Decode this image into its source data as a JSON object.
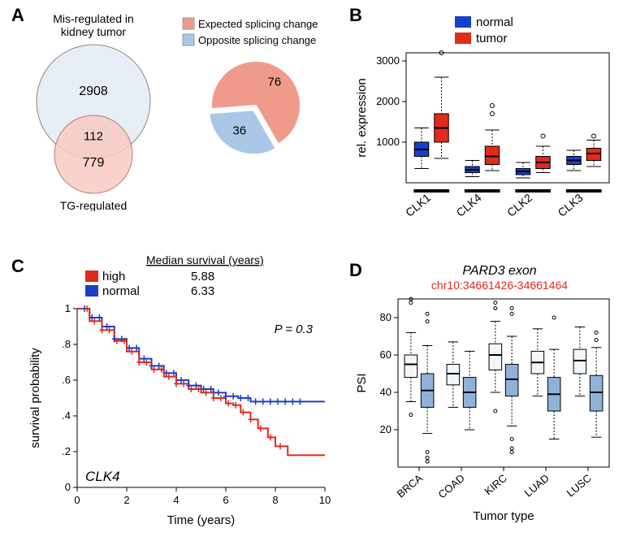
{
  "panelA": {
    "label": "A",
    "venn": {
      "topTitle": "Mis-regulated in\nkidney tumor",
      "bottomTitle": "TG-regulated",
      "topValue": 2908,
      "overlapValue": 112,
      "bottomValue": 779,
      "topColor": "#e8eef5",
      "bottomColor": "#f7cac2",
      "stroke": "#999"
    },
    "pie": {
      "legendExpected": "Expected splicing change",
      "legendOpposite": "Opposite splicing change",
      "expectedValue": 76,
      "oppositeValue": 36,
      "expectedColor": "#f09a8c",
      "oppositeColor": "#a9c8e8"
    }
  },
  "panelB": {
    "label": "B",
    "legend": {
      "normal": "normal",
      "tumor": "tumor",
      "normalColor": "#1a3ec7",
      "tumorColor": "#e02a1a"
    },
    "ylabel": "rel. expression",
    "ylim": [
      0,
      3200
    ],
    "yticks": [
      1000,
      2000,
      3000
    ],
    "categories": [
      "CLK1",
      "CLK4",
      "CLK2",
      "CLK3"
    ],
    "boxes": [
      {
        "cat": "CLK1",
        "group": "normal",
        "q1": 650,
        "med": 820,
        "q3": 1000,
        "lw": 350,
        "uw": 1350,
        "outliers": []
      },
      {
        "cat": "CLK1",
        "group": "tumor",
        "q1": 1000,
        "med": 1350,
        "q3": 1700,
        "lw": 600,
        "uw": 2600,
        "outliers": [
          3200
        ]
      },
      {
        "cat": "CLK4",
        "group": "normal",
        "q1": 250,
        "med": 320,
        "q3": 400,
        "lw": 150,
        "uw": 550,
        "outliers": []
      },
      {
        "cat": "CLK4",
        "group": "tumor",
        "q1": 450,
        "med": 650,
        "q3": 900,
        "lw": 300,
        "uw": 1300,
        "outliers": [
          1700,
          1900
        ]
      },
      {
        "cat": "CLK2",
        "group": "normal",
        "q1": 200,
        "med": 280,
        "q3": 350,
        "lw": 120,
        "uw": 500,
        "outliers": []
      },
      {
        "cat": "CLK2",
        "group": "tumor",
        "q1": 350,
        "med": 500,
        "q3": 650,
        "lw": 250,
        "uw": 900,
        "outliers": [
          1150
        ]
      },
      {
        "cat": "CLK3",
        "group": "normal",
        "q1": 450,
        "med": 550,
        "q3": 650,
        "lw": 300,
        "uw": 800,
        "outliers": []
      },
      {
        "cat": "CLK3",
        "group": "tumor",
        "q1": 550,
        "med": 720,
        "q3": 850,
        "lw": 400,
        "uw": 1050,
        "outliers": [
          1150
        ]
      }
    ]
  },
  "panelC": {
    "label": "C",
    "header": "Median survival (years)",
    "highLabel": "high",
    "normalLabel": "normal",
    "highValue": "5.88",
    "normalValue": "6.33",
    "pvalue": "P = 0.3",
    "gene": "CLK4",
    "xlabel": "Time (years)",
    "ylabel": "survival probability",
    "xlim": [
      0,
      10
    ],
    "ylim": [
      0,
      1
    ],
    "xticks": [
      0,
      2,
      4,
      6,
      8,
      10
    ],
    "yticks": [
      0,
      0.2,
      0.4,
      0.6,
      0.8,
      1
    ],
    "highColor": "#e02a1a",
    "normalColor": "#1a3ec7",
    "curveNormal": [
      [
        0,
        1.0
      ],
      [
        0.5,
        0.95
      ],
      [
        1,
        0.9
      ],
      [
        1.5,
        0.83
      ],
      [
        2,
        0.78
      ],
      [
        2.5,
        0.72
      ],
      [
        3,
        0.68
      ],
      [
        3.5,
        0.64
      ],
      [
        4,
        0.6
      ],
      [
        4.5,
        0.57
      ],
      [
        5,
        0.55
      ],
      [
        5.5,
        0.53
      ],
      [
        6,
        0.51
      ],
      [
        6.5,
        0.5
      ],
      [
        7,
        0.48
      ],
      [
        8,
        0.48
      ],
      [
        9,
        0.48
      ],
      [
        10,
        0.48
      ]
    ],
    "curveHigh": [
      [
        0,
        1.0
      ],
      [
        0.5,
        0.93
      ],
      [
        1,
        0.88
      ],
      [
        1.5,
        0.82
      ],
      [
        2,
        0.76
      ],
      [
        2.5,
        0.7
      ],
      [
        3,
        0.66
      ],
      [
        3.5,
        0.62
      ],
      [
        4,
        0.58
      ],
      [
        4.5,
        0.55
      ],
      [
        5,
        0.53
      ],
      [
        5.5,
        0.5
      ],
      [
        6,
        0.47
      ],
      [
        6.3,
        0.46
      ],
      [
        6.6,
        0.42
      ],
      [
        7,
        0.38
      ],
      [
        7.3,
        0.33
      ],
      [
        7.7,
        0.28
      ],
      [
        8,
        0.23
      ],
      [
        8.5,
        0.18
      ],
      [
        10,
        0.18
      ]
    ],
    "normalTicks": [
      0.3,
      0.6,
      0.9,
      1.2,
      1.5,
      1.8,
      2.1,
      2.4,
      2.7,
      3.0,
      3.3,
      3.6,
      3.9,
      4.2,
      4.5,
      4.8,
      5.1,
      5.4,
      5.7,
      6.0,
      6.3,
      6.6,
      6.9,
      7.2,
      7.5,
      7.8,
      8.1,
      8.4,
      8.7,
      9.0
    ],
    "highTicks": [
      0.4,
      0.7,
      1.0,
      1.3,
      1.6,
      1.9,
      2.2,
      2.5,
      2.8,
      3.1,
      3.4,
      3.7,
      4.0,
      4.3,
      4.6,
      4.9,
      5.2,
      5.5,
      5.8,
      6.1,
      6.4,
      6.7,
      7.0,
      7.4,
      7.8,
      8.2
    ]
  },
  "panelD": {
    "label": "D",
    "title": "PARD3 exon",
    "subtitle": "chr10:34661426-34661464",
    "subtitleColor": "#e02a1a",
    "ylabel": "PSI",
    "xlabel": "Tumor type",
    "ylim": [
      0,
      90
    ],
    "yticks": [
      20,
      40,
      60,
      80
    ],
    "categories": [
      "BRCA",
      "COAD",
      "KIRC",
      "LUAD",
      "LUSC"
    ],
    "normalColor": "#f3f6fa",
    "tumorColor": "#8fb3d8",
    "boxes": [
      {
        "cat": "BRCA",
        "group": "normal",
        "q1": 48,
        "med": 55,
        "q3": 60,
        "lw": 35,
        "uw": 72,
        "outliers": [
          90,
          88,
          28
        ]
      },
      {
        "cat": "BRCA",
        "group": "tumor",
        "q1": 32,
        "med": 41,
        "q3": 50,
        "lw": 18,
        "uw": 65,
        "outliers": [
          3,
          5,
          8,
          78,
          82
        ]
      },
      {
        "cat": "COAD",
        "group": "normal",
        "q1": 44,
        "med": 50,
        "q3": 55,
        "lw": 32,
        "uw": 67,
        "outliers": []
      },
      {
        "cat": "COAD",
        "group": "tumor",
        "q1": 32,
        "med": 40,
        "q3": 48,
        "lw": 20,
        "uw": 62,
        "outliers": []
      },
      {
        "cat": "KIRC",
        "group": "normal",
        "q1": 52,
        "med": 60,
        "q3": 66,
        "lw": 40,
        "uw": 78,
        "outliers": [
          30,
          85,
          88
        ]
      },
      {
        "cat": "KIRC",
        "group": "tumor",
        "q1": 38,
        "med": 47,
        "q3": 55,
        "lw": 22,
        "uw": 70,
        "outliers": [
          8,
          10,
          15,
          82,
          85
        ]
      },
      {
        "cat": "LUAD",
        "group": "normal",
        "q1": 50,
        "med": 56,
        "q3": 62,
        "lw": 38,
        "uw": 74,
        "outliers": []
      },
      {
        "cat": "LUAD",
        "group": "tumor",
        "q1": 30,
        "med": 39,
        "q3": 48,
        "lw": 15,
        "uw": 63,
        "outliers": [
          80
        ]
      },
      {
        "cat": "LUSC",
        "group": "normal",
        "q1": 50,
        "med": 57,
        "q3": 63,
        "lw": 38,
        "uw": 75,
        "outliers": []
      },
      {
        "cat": "LUSC",
        "group": "tumor",
        "q1": 30,
        "med": 40,
        "q3": 49,
        "lw": 16,
        "uw": 64,
        "outliers": [
          68,
          72
        ]
      }
    ]
  }
}
